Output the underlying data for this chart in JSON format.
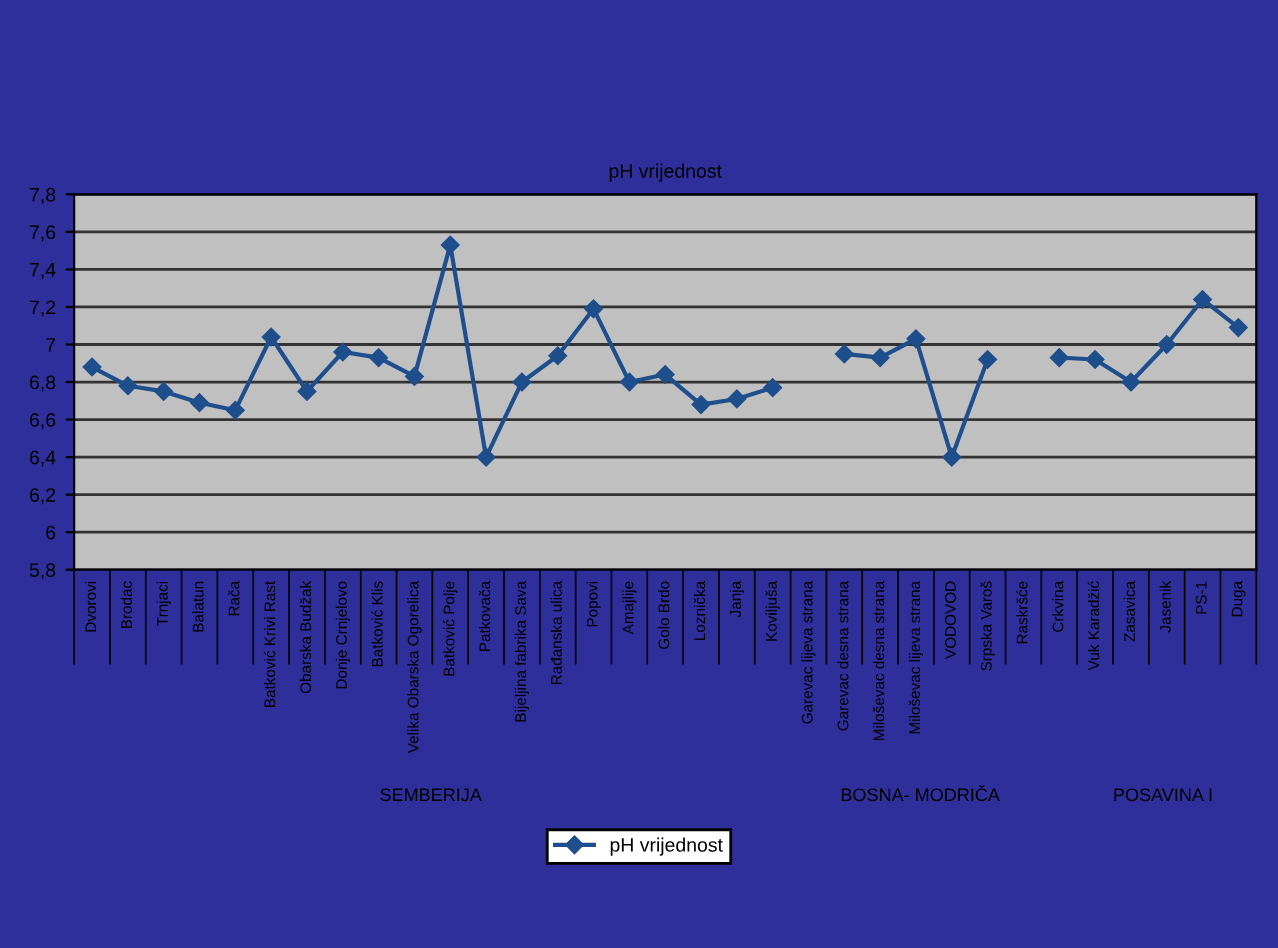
{
  "chart_data": {
    "type": "line",
    "title": "pH vrijednost",
    "categories": [
      "Dvorovi",
      "Brodac",
      "Trnjaci",
      "Balatun",
      "Rača",
      "Batković Krivi Rast",
      "Obarska Budžak",
      "Donje Crnjelovo",
      "Batković Klis",
      "Velika Obarska Ogorelica",
      "Batković Polje",
      "Patkovača",
      "Bijeljina fabrika Sava",
      "Rađanska ulica",
      "Popovi",
      "Amajlije",
      "Golo Brdo",
      "Loznička",
      "Janja",
      "Koviljuša",
      "Garevac lijeva strana",
      "Garevac desna strana",
      "Miloševac desna strana",
      "Miloševac lijeva strana",
      "VODOVOD",
      "Srpska Varoš",
      "Raskršće",
      "Crkvina",
      "Vuk Karadžić",
      "Zasavica",
      "Jasenik",
      "PS-1",
      "Duga"
    ],
    "series": [
      {
        "name": "pH vrijednost",
        "color": "#1f4e8c",
        "values": [
          6.88,
          6.78,
          6.75,
          6.69,
          6.65,
          7.04,
          6.75,
          6.96,
          6.93,
          6.83,
          7.53,
          6.4,
          6.8,
          6.94,
          7.19,
          6.8,
          6.84,
          6.68,
          6.71,
          6.77,
          null,
          6.95,
          6.93,
          7.03,
          6.4,
          6.92,
          null,
          6.93,
          6.92,
          6.8,
          7.0,
          7.24,
          7.09
        ]
      }
    ],
    "ylim": [
      5.8,
      7.8
    ],
    "yticks": [
      {
        "value": 5.8,
        "label": "5,8"
      },
      {
        "value": 6.0,
        "label": "6"
      },
      {
        "value": 6.2,
        "label": "6,2"
      },
      {
        "value": 6.4,
        "label": "6,4"
      },
      {
        "value": 6.6,
        "label": "6,6"
      },
      {
        "value": 6.8,
        "label": "6,8"
      },
      {
        "value": 7.0,
        "label": "7"
      },
      {
        "value": 7.2,
        "label": "7,2"
      },
      {
        "value": 7.4,
        "label": "7,4"
      },
      {
        "value": 7.6,
        "label": "7,6"
      },
      {
        "value": 7.8,
        "label": "7,8"
      }
    ],
    "grid": "y",
    "legend": "bottom",
    "marker": "diamond",
    "line_style": "solid",
    "annotations": [
      "SEMBERIJA",
      "BOSNA- MODRIČA",
      "POSAVINA I"
    ]
  }
}
